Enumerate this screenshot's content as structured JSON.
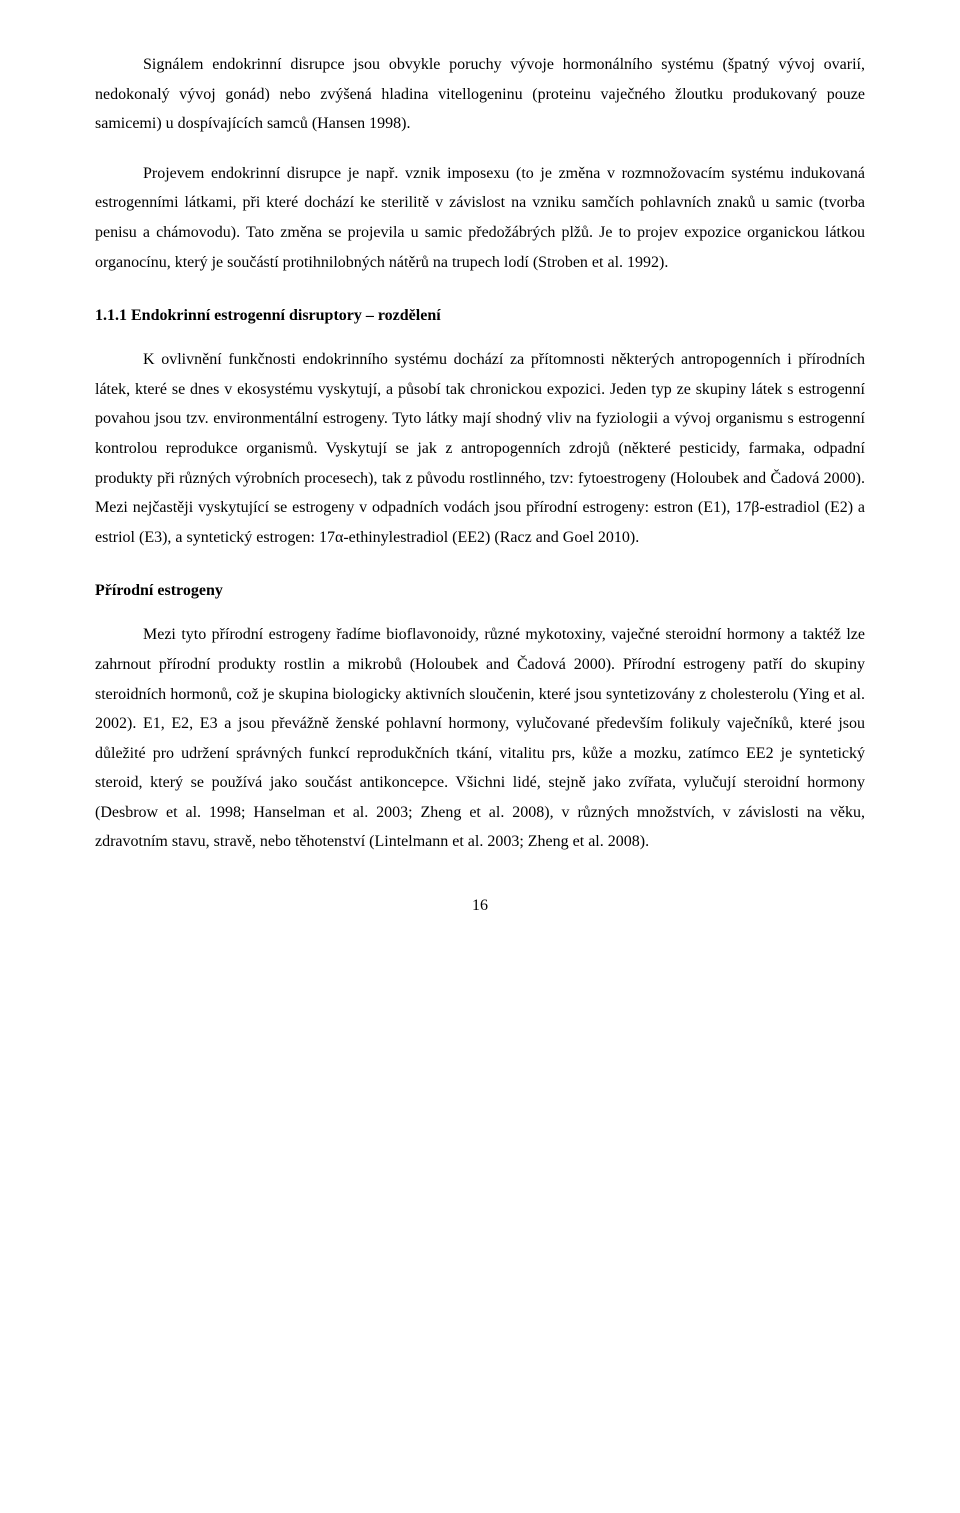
{
  "paragraphs": {
    "p1": "Signálem endokrinní disrupce jsou obvykle poruchy vývoje hormonálního systému (špatný vývoj ovarií, nedokonalý vývoj gonád) nebo zvýšená hladina vitellogeninu (proteinu vaječného žloutku produkovaný pouze samicemi) u dospívajících samců (Hansen 1998).",
    "p2": "Projevem endokrinní disrupce je např. vznik imposexu (to je změna v rozmnožovacím systému indukovaná estrogenními látkami, při které dochází ke sterilitě v závislost na vzniku samčích pohlavních znaků u samic (tvorba penisu a chámovodu). Tato změna se projevila u samic předožábrých plžů. Je to projev expozice organickou látkou organocínu, který je součástí protihnilobných nátěrů na trupech lodí (Stroben et al. 1992).",
    "p3": "K ovlivnění funkčnosti endokrinního systému dochází za přítomnosti některých antropogenních i přírodních látek, které se dnes v ekosystému vyskytují, a působí tak chronickou expozici. Jeden typ ze skupiny látek s estrogenní povahou jsou tzv. environmentální estrogeny. Tyto látky mají shodný vliv na fyziologii a vývoj organismu s estrogenní kontrolou reprodukce organismů. Vyskytují se jak z antropogenních zdrojů (některé pesticidy, farmaka, odpadní produkty při různých výrobních procesech), tak z původu rostlinného, tzv: fytoestrogeny (Holoubek and Čadová 2000). Mezi nejčastěji vyskytující se estrogeny v odpadních vodách jsou přírodní estrogeny: estron (E1), 17β-estradiol (E2) a estriol (E3), a syntetický estrogen: 17α-ethinylestradiol (EE2) (Racz and Goel 2010).",
    "p4": "Mezi tyto přírodní estrogeny řadíme bioflavonoidy, různé mykotoxiny, vaječné steroidní hormony a taktéž lze zahrnout přírodní produkty rostlin a mikrobů (Holoubek and Čadová 2000). Přírodní estrogeny patří do skupiny steroidních hormonů, což je skupina biologicky aktivních sloučenin, které jsou syntetizovány z cholesterolu (Ying et al. 2002). E1, E2, E3 a jsou převážně ženské pohlavní hormony, vylučované především folikuly vaječníků, které jsou důležité pro udržení správných funkcí reprodukčních tkání, vitalitu prs, kůže a mozku, zatímco EE2 je syntetický steroid, který se používá jako součást antikoncepce. Všichni lidé, stejně jako zvířata, vylučují steroidní hormony (Desbrow et al. 1998; Hanselman et al. 2003; Zheng et al. 2008), v různých množstvích, v závislosti na věku, zdravotním stavu, stravě, nebo těhotenství (Lintelmann et al. 2003; Zheng et al. 2008)."
  },
  "headings": {
    "h1": "1.1.1  Endokrinní estrogenní disruptory – rozdělení",
    "h2": "Přírodní estrogeny"
  },
  "pageNumber": "16"
}
